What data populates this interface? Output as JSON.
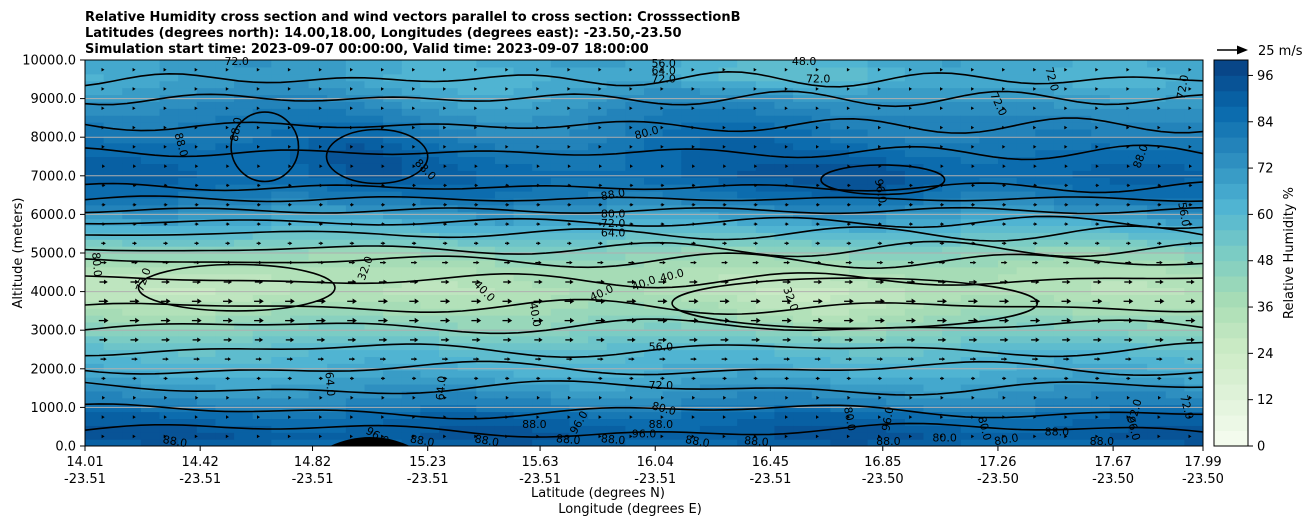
{
  "chart_data": {
    "type": "heatmap",
    "title_lines": [
      "Relative Humidity cross section and wind vectors parallel to cross section: CrosssectionB",
      "Latitudes (degrees north): 14.00,18.00, Longitudes (degrees east): -23.50,-23.50",
      "Simulation start time: 2023-09-07 00:00:00, Valid time: 2023-09-07 18:00:00"
    ],
    "xlabel_lines": [
      "Latitude (degrees N)",
      "Longitude (degrees E)"
    ],
    "ylabel": "Altitude (meters)",
    "colorbar_label": "Relative Humidity %",
    "quiver_key_label": "25 m/s",
    "x_range": [
      14.01,
      17.99
    ],
    "ylim": [
      0,
      10000
    ],
    "x_ticks": [
      {
        "lat": "14.01",
        "lon": "-23.51"
      },
      {
        "lat": "14.42",
        "lon": "-23.51"
      },
      {
        "lat": "14.82",
        "lon": "-23.51"
      },
      {
        "lat": "15.23",
        "lon": "-23.51"
      },
      {
        "lat": "15.63",
        "lon": "-23.51"
      },
      {
        "lat": "16.04",
        "lon": "-23.51"
      },
      {
        "lat": "16.45",
        "lon": "-23.51"
      },
      {
        "lat": "16.85",
        "lon": "-23.50"
      },
      {
        "lat": "17.26",
        "lon": "-23.50"
      },
      {
        "lat": "17.67",
        "lon": "-23.50"
      },
      {
        "lat": "17.99",
        "lon": "-23.50"
      }
    ],
    "y_ticks": [
      "0.0",
      "1000.0",
      "2000.0",
      "3000.0",
      "4000.0",
      "5000.0",
      "6000.0",
      "7000.0",
      "8000.0",
      "9000.0",
      "10000.0"
    ],
    "colorbar_ticks": [
      "0",
      "12",
      "24",
      "36",
      "48",
      "60",
      "72",
      "84",
      "96"
    ],
    "colorbar_range": [
      0,
      100
    ],
    "colorbar_step": 4,
    "colormap": "GnBu",
    "grid": "horizontal",
    "humidity_profile": {
      "altitude_m": [
        0,
        300,
        800,
        1200,
        1800,
        2500,
        3000,
        3500,
        4000,
        4500,
        5000,
        5500,
        6000,
        6500,
        7000,
        7500,
        8000,
        8500,
        9000,
        9500,
        10000
      ],
      "rh_percent": [
        88,
        92,
        86,
        76,
        66,
        58,
        48,
        40,
        34,
        36,
        44,
        58,
        70,
        82,
        88,
        86,
        82,
        78,
        72,
        66,
        68
      ]
    },
    "contour_labels": [
      {
        "text": "72.0",
        "lat": 14.55,
        "alt": 9950,
        "angle": 0
      },
      {
        "text": "88.0",
        "lat": 14.55,
        "alt": 8200,
        "angle": -80
      },
      {
        "text": "88.0",
        "lat": 14.35,
        "alt": 7800,
        "angle": 75
      },
      {
        "text": "88.0",
        "lat": 15.22,
        "alt": 7150,
        "angle": 45
      },
      {
        "text": "56.0",
        "lat": 16.07,
        "alt": 9900,
        "angle": 0
      },
      {
        "text": "64.0",
        "lat": 16.07,
        "alt": 9700,
        "angle": 0
      },
      {
        "text": "72.0",
        "lat": 16.07,
        "alt": 9500,
        "angle": 0
      },
      {
        "text": "48.0",
        "lat": 16.57,
        "alt": 9950,
        "angle": 0
      },
      {
        "text": "72.0",
        "lat": 16.62,
        "alt": 9500,
        "angle": 0
      },
      {
        "text": "72.0",
        "lat": 17.45,
        "alt": 9500,
        "angle": 75
      },
      {
        "text": "72.0",
        "lat": 17.92,
        "alt": 9300,
        "angle": -80
      },
      {
        "text": "72.0",
        "lat": 17.26,
        "alt": 8850,
        "angle": 65
      },
      {
        "text": "80.0",
        "lat": 16.01,
        "alt": 8100,
        "angle": -15
      },
      {
        "text": "88.0",
        "lat": 17.77,
        "alt": 7500,
        "angle": -70
      },
      {
        "text": "96.0",
        "lat": 16.84,
        "alt": 6600,
        "angle": 80
      },
      {
        "text": "88.0",
        "lat": 15.89,
        "alt": 6500,
        "angle": -10
      },
      {
        "text": "80.0",
        "lat": 15.89,
        "alt": 6000,
        "angle": 0
      },
      {
        "text": "72.0",
        "lat": 15.89,
        "alt": 5750,
        "angle": 0
      },
      {
        "text": "64.0",
        "lat": 15.89,
        "alt": 5500,
        "angle": 0
      },
      {
        "text": "56.0",
        "lat": 17.92,
        "alt": 6000,
        "angle": 80
      },
      {
        "text": "80.0",
        "lat": 14.05,
        "alt": 4700,
        "angle": 85
      },
      {
        "text": "72.0",
        "lat": 14.22,
        "alt": 4300,
        "angle": -70
      },
      {
        "text": "32.0",
        "lat": 15.01,
        "alt": 4600,
        "angle": -70
      },
      {
        "text": "40.0",
        "lat": 15.43,
        "alt": 4000,
        "angle": 45
      },
      {
        "text": "40.0",
        "lat": 15.61,
        "alt": 3400,
        "angle": 80
      },
      {
        "text": "40.0",
        "lat": 15.85,
        "alt": 3950,
        "angle": -25
      },
      {
        "text": "40.0",
        "lat": 16.0,
        "alt": 4200,
        "angle": -20
      },
      {
        "text": "40.0",
        "lat": 16.1,
        "alt": 4400,
        "angle": -15
      },
      {
        "text": "32.0",
        "lat": 16.52,
        "alt": 3800,
        "angle": 70
      },
      {
        "text": "56.0",
        "lat": 16.06,
        "alt": 2550,
        "angle": 0
      },
      {
        "text": "64.0",
        "lat": 14.88,
        "alt": 1600,
        "angle": 85
      },
      {
        "text": "64.0",
        "lat": 15.28,
        "alt": 1500,
        "angle": -85
      },
      {
        "text": "72.0",
        "lat": 16.06,
        "alt": 1550,
        "angle": 0
      },
      {
        "text": "80.0",
        "lat": 16.07,
        "alt": 950,
        "angle": 15
      },
      {
        "text": "88.0",
        "lat": 16.06,
        "alt": 550,
        "angle": 0
      },
      {
        "text": "88.0",
        "lat": 15.61,
        "alt": 550,
        "angle": 0
      },
      {
        "text": "88.0",
        "lat": 14.33,
        "alt": 100,
        "angle": 10
      },
      {
        "text": "96.0",
        "lat": 15.05,
        "alt": 250,
        "angle": 30
      },
      {
        "text": "88.0",
        "lat": 15.21,
        "alt": 120,
        "angle": 10
      },
      {
        "text": "88.0",
        "lat": 15.44,
        "alt": 120,
        "angle": 10
      },
      {
        "text": "88.0",
        "lat": 15.73,
        "alt": 150,
        "angle": 5
      },
      {
        "text": "96.0",
        "lat": 15.77,
        "alt": 600,
        "angle": -60
      },
      {
        "text": "88.0",
        "lat": 15.89,
        "alt": 150,
        "angle": 5
      },
      {
        "text": "96.0",
        "lat": 16.0,
        "alt": 300,
        "angle": 0
      },
      {
        "text": "88.0",
        "lat": 16.19,
        "alt": 100,
        "angle": 10
      },
      {
        "text": "88.0",
        "lat": 16.4,
        "alt": 100,
        "angle": 5
      },
      {
        "text": "80.0",
        "lat": 16.73,
        "alt": 700,
        "angle": 80
      },
      {
        "text": "96.0",
        "lat": 16.87,
        "alt": 700,
        "angle": -80
      },
      {
        "text": "88.0",
        "lat": 16.87,
        "alt": 100,
        "angle": 0
      },
      {
        "text": "80.0",
        "lat": 17.07,
        "alt": 200,
        "angle": 0
      },
      {
        "text": "80.0",
        "lat": 17.21,
        "alt": 450,
        "angle": 75
      },
      {
        "text": "80.0",
        "lat": 17.29,
        "alt": 150,
        "angle": -10
      },
      {
        "text": "88.0",
        "lat": 17.47,
        "alt": 350,
        "angle": 0
      },
      {
        "text": "88.0",
        "lat": 17.63,
        "alt": 100,
        "angle": 0
      },
      {
        "text": "72.0",
        "lat": 17.75,
        "alt": 900,
        "angle": -75
      },
      {
        "text": "96.0",
        "lat": 17.74,
        "alt": 450,
        "angle": 75
      },
      {
        "text": "72.0",
        "lat": 17.93,
        "alt": 1000,
        "angle": 75
      }
    ]
  }
}
